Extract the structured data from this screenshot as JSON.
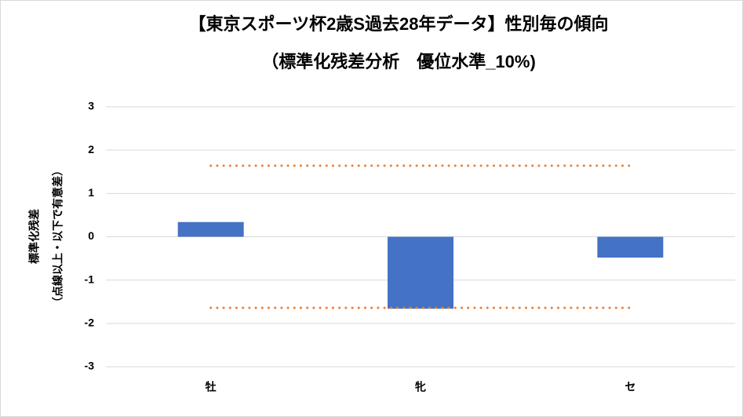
{
  "chart_data": {
    "type": "bar",
    "title": "【東京スポーツ杯2歳S過去28年データ】性別毎の傾向",
    "subtitle": "（標準化残差分析　優位水準_10%)",
    "y_label": [
      "標準化残差",
      "（点線以上・以下で有意差）"
    ],
    "categories": [
      "牡",
      "牝",
      "セ"
    ],
    "values": [
      0.34,
      -1.66,
      -0.48
    ],
    "color": "#4472c4",
    "reference_lines": [
      1.64,
      -1.64
    ],
    "reference_color": "#ed7d31",
    "ylim": [
      -3,
      3
    ],
    "yticks": [
      -3,
      -2,
      -1,
      0,
      1,
      2,
      3
    ],
    "grid": true
  }
}
